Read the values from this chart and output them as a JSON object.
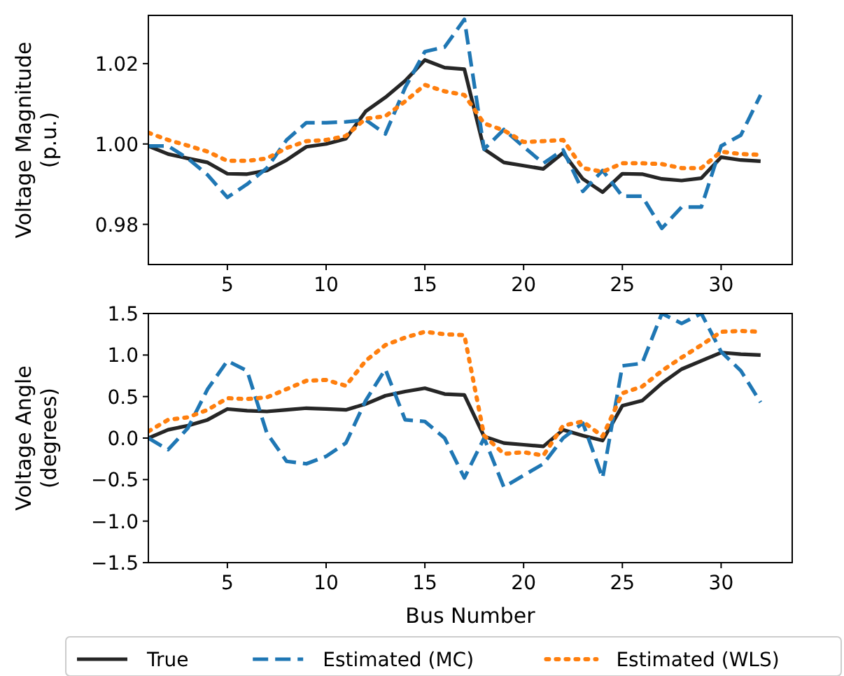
{
  "chart_data": [
    {
      "type": "line",
      "ylabel": "Voltage Magnitude\n(p.u.)",
      "x": [
        1,
        2,
        3,
        4,
        5,
        6,
        7,
        8,
        9,
        10,
        11,
        12,
        13,
        14,
        15,
        16,
        17,
        18,
        19,
        20,
        21,
        22,
        23,
        24,
        25,
        26,
        27,
        28,
        29,
        30,
        31,
        32
      ],
      "xlim": [
        1,
        33.6
      ],
      "xticks": [
        5,
        10,
        15,
        20,
        25,
        30
      ],
      "ylim": [
        0.97,
        1.032
      ],
      "yticks": [
        {
          "value": 0.98,
          "label": "0.98"
        },
        {
          "value": 1.0,
          "label": "1.00"
        },
        {
          "value": 1.02,
          "label": "1.02"
        }
      ],
      "grid": false,
      "legend": false,
      "series": [
        {
          "color": "#262626",
          "line_style": "solid",
          "values": [
            0.9995,
            0.9975,
            0.9964,
            0.9954,
            0.9926,
            0.9925,
            0.9934,
            0.996,
            0.9993,
            1.0,
            1.0013,
            1.0081,
            1.0116,
            1.0157,
            1.0209,
            1.019,
            1.0186,
            0.9987,
            0.9954,
            0.9946,
            0.9938,
            0.9978,
            0.9913,
            0.988,
            0.9926,
            0.9925,
            0.9913,
            0.9909,
            0.9915,
            0.9967,
            0.996,
            0.9957
          ]
        },
        {
          "color": "#1f77b4",
          "line_style": "dashed",
          "values": [
            0.9995,
            0.9995,
            0.9964,
            0.9923,
            0.9867,
            0.99,
            0.994,
            1.001,
            1.0053,
            1.0053,
            1.0055,
            1.006,
            1.0025,
            1.014,
            1.023,
            1.0241,
            1.031,
            0.9987,
            1.0036,
            0.9993,
            0.9952,
            0.9985,
            0.9882,
            0.9934,
            0.987,
            0.987,
            0.979,
            0.9843,
            0.9843,
            0.9995,
            1.0022,
            1.0122
          ]
        },
        {
          "color": "#ff7f0e",
          "line_style": "dotted",
          "values": [
            1.0028,
            1.001,
            0.9996,
            0.9981,
            0.9958,
            0.9958,
            0.9964,
            0.999,
            1.0007,
            1.001,
            1.002,
            1.0063,
            1.0069,
            1.0106,
            1.0147,
            1.0131,
            1.0122,
            1.0051,
            1.0034,
            1.0005,
            1.0007,
            1.001,
            0.994,
            0.9931,
            0.9952,
            0.9952,
            0.995,
            0.994,
            0.994,
            0.9981,
            0.9975,
            0.9973
          ]
        }
      ]
    },
    {
      "type": "line",
      "xlabel": "Bus Number",
      "ylabel": "Voltage Angle\n(degrees)",
      "x": [
        1,
        2,
        3,
        4,
        5,
        6,
        7,
        8,
        9,
        10,
        11,
        12,
        13,
        14,
        15,
        16,
        17,
        18,
        19,
        20,
        21,
        22,
        23,
        24,
        25,
        26,
        27,
        28,
        29,
        30,
        31,
        32
      ],
      "xlim": [
        1,
        33.6
      ],
      "xticks": [
        5,
        10,
        15,
        20,
        25,
        30
      ],
      "ylim": [
        -1.5,
        1.5
      ],
      "yticks": [
        {
          "value": -1.5,
          "label": "−1.5"
        },
        {
          "value": -1.0,
          "label": "−1.0"
        },
        {
          "value": -0.5,
          "label": "−0.5"
        },
        {
          "value": 0,
          "label": "0.0"
        },
        {
          "value": 0.5,
          "label": "0.5"
        },
        {
          "value": 1.0,
          "label": "1.0"
        },
        {
          "value": 1.5,
          "label": "1.5"
        }
      ],
      "grid": false,
      "legend": "bottom",
      "series": [
        {
          "name": "True",
          "color": "#262626",
          "line_style": "solid",
          "values": [
            0,
            0.1,
            0.15,
            0.22,
            0.35,
            0.33,
            0.32,
            0.34,
            0.36,
            0.35,
            0.34,
            0.41,
            0.51,
            0.56,
            0.6,
            0.53,
            0.52,
            0.02,
            -0.06,
            -0.08,
            -0.1,
            0.1,
            0.03,
            -0.03,
            0.39,
            0.45,
            0.66,
            0.83,
            0.93,
            1.03,
            1.01,
            1.0
          ]
        },
        {
          "name": "Estimated (MC)",
          "color": "#1f77b4",
          "line_style": "dashed",
          "values": [
            0,
            -0.14,
            0.12,
            0.59,
            0.93,
            0.81,
            0.06,
            -0.28,
            -0.31,
            -0.22,
            -0.06,
            0.45,
            0.83,
            0.22,
            0.2,
            0,
            -0.48,
            0,
            -0.59,
            -0.45,
            -0.31,
            0,
            0.18,
            -0.48,
            0.87,
            0.9,
            1.5,
            1.38,
            1.5,
            1.04,
            0.81,
            0.43
          ]
        },
        {
          "name": "Estimated (WLS)",
          "color": "#ff7f0e",
          "line_style": "dotted",
          "values": [
            0.08,
            0.22,
            0.25,
            0.34,
            0.48,
            0.47,
            0.49,
            0.59,
            0.69,
            0.7,
            0.63,
            0.93,
            1.12,
            1.21,
            1.28,
            1.25,
            1.24,
            0.03,
            -0.19,
            -0.17,
            -0.21,
            0.15,
            0.2,
            0.02,
            0.54,
            0.62,
            0.81,
            0.97,
            1.12,
            1.28,
            1.29,
            1.28
          ]
        }
      ]
    }
  ]
}
